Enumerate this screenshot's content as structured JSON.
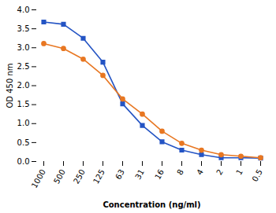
{
  "chart_data": {
    "type": "line",
    "xlabel": "Concentration (ng/ml)",
    "ylabel": "OD 450 nm",
    "categories": [
      "1000",
      "500",
      "250",
      "125",
      "63",
      "31",
      "16",
      "8",
      "4",
      "2",
      "1",
      "0.5"
    ],
    "series": [
      {
        "color": "#2454C4",
        "marker": "square",
        "values": [
          3.68,
          3.62,
          3.25,
          2.62,
          1.52,
          0.95,
          0.52,
          0.3,
          0.18,
          0.1,
          0.1,
          0.09
        ]
      },
      {
        "color": "#E87722",
        "marker": "circle",
        "values": [
          3.11,
          2.98,
          2.7,
          2.27,
          1.65,
          1.25,
          0.8,
          0.48,
          0.3,
          0.18,
          0.14,
          0.1
        ]
      }
    ],
    "ylim": [
      0.0,
      4.0
    ],
    "yticks": [
      {
        "value": 0.0,
        "label": "0.0"
      },
      0.5,
      {
        "value": 1.0,
        "label": "1.0"
      },
      1.5,
      {
        "value": 2.0,
        "label": "2.0"
      },
      2.5,
      {
        "value": 3.0,
        "label": "3.0"
      },
      3.5,
      {
        "value": 4.0,
        "label": "4.0"
      }
    ],
    "grid": false
  }
}
